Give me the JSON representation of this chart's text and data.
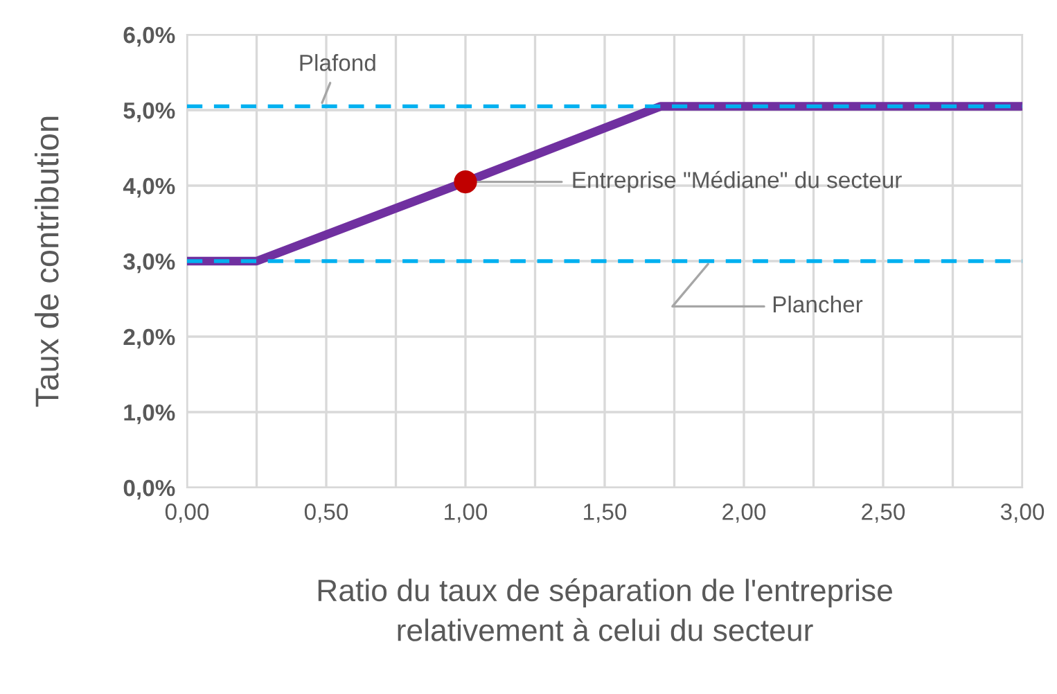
{
  "chart_data": {
    "type": "line",
    "xlabel": "Ratio du taux de séparation de l'entreprise\nrelativement à celui du secteur",
    "ylabel": "Taux de contribution",
    "xlim": [
      0,
      3
    ],
    "ylim": [
      0,
      6
    ],
    "xticks": [
      {
        "value": 0,
        "label": "0,00"
      },
      {
        "value": 0.25,
        "label": null
      },
      {
        "value": 0.5,
        "label": "0,50"
      },
      {
        "value": 0.75,
        "label": null
      },
      {
        "value": 1,
        "label": "1,00"
      },
      {
        "value": 1.25,
        "label": null
      },
      {
        "value": 1.5,
        "label": "1,50"
      },
      {
        "value": 1.75,
        "label": null
      },
      {
        "value": 2,
        "label": "2,00"
      },
      {
        "value": 2.25,
        "label": null
      },
      {
        "value": 2.5,
        "label": "2,50"
      },
      {
        "value": 2.75,
        "label": null
      },
      {
        "value": 3,
        "label": "3,00"
      }
    ],
    "yticks": [
      {
        "value": 0,
        "label": "0,0%"
      },
      {
        "value": 1,
        "label": "1,0%"
      },
      {
        "value": 2,
        "label": "2,0%"
      },
      {
        "value": 3,
        "label": "3,0%"
      },
      {
        "value": 4,
        "label": "4,0%"
      },
      {
        "value": 5,
        "label": "5,0%"
      },
      {
        "value": 6,
        "label": "6,0%"
      }
    ],
    "grid": true,
    "legend": false,
    "series": [
      {
        "color": "#7030a0",
        "x": [
          0,
          0.25,
          1.0,
          1.7,
          3.0
        ],
        "values": [
          3.0,
          3.0,
          4.05,
          5.05,
          5.05
        ]
      },
      {
        "type": "scatter",
        "color": "#c00000",
        "marker": "circle",
        "x": [
          1.0
        ],
        "values": [
          4.05
        ]
      }
    ],
    "ref_lines": [
      {
        "axis": "y",
        "value": 5.05,
        "label": "Plafond",
        "color": "#00b0f0",
        "line_style": "dashed"
      },
      {
        "axis": "y",
        "value": 3.0,
        "label": "Plancher",
        "color": "#00b0f0",
        "line_style": "dashed"
      }
    ],
    "annotations": [
      {
        "text": "Entreprise \"Médiane\" du secteur",
        "x": 1.0,
        "y": 4.05
      }
    ]
  }
}
